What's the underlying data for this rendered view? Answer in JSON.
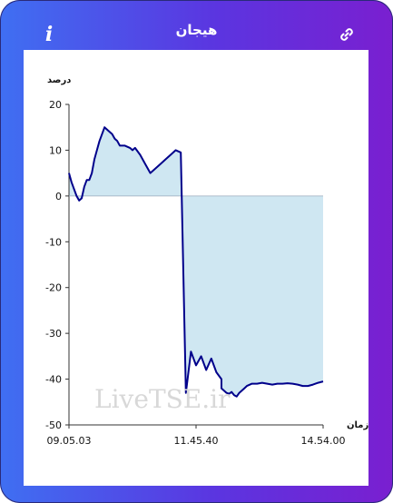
{
  "header": {
    "title": "هیجان",
    "info_label": "i"
  },
  "watermark": "LiveTSE.ir",
  "colors": {
    "line": "#00008b",
    "fill": "#cfe7f2",
    "axis": "#333333"
  },
  "icons": {
    "info": "info-icon",
    "link": "link-icon"
  },
  "chart_data": {
    "type": "area",
    "ylabel": "درصد",
    "xlabel": "زمان",
    "ylim": [
      -50,
      20
    ],
    "yticks": [
      20,
      10,
      0,
      -10,
      -20,
      -30,
      -40,
      -50
    ],
    "xticks": [
      "09.05.03",
      "11.45.40",
      "14.54.00"
    ],
    "grid": false,
    "series": [
      {
        "x": [
          0,
          0.01,
          0.03,
          0.04,
          0.05,
          0.06,
          0.07,
          0.08,
          0.09,
          0.1,
          0.11,
          0.12,
          0.14,
          0.16,
          0.17,
          0.18,
          0.19,
          0.2,
          0.22,
          0.24,
          0.25,
          0.26,
          0.28,
          0.3,
          0.32,
          0.33,
          0.34,
          0.36,
          0.38,
          0.4,
          0.42,
          0.44,
          0.46,
          0.48,
          0.5,
          0.52,
          0.54,
          0.56,
          0.58,
          0.6,
          0.6,
          0.61,
          0.62,
          0.63,
          0.64,
          0.65,
          0.66,
          0.67,
          0.68,
          0.69,
          0.7,
          0.72,
          0.74,
          0.76,
          0.78,
          0.8,
          0.82,
          0.84,
          0.86,
          0.88,
          0.9,
          0.92,
          0.94,
          0.96,
          0.98,
          1.0
        ],
        "y": [
          5,
          3,
          0,
          -1,
          -0.5,
          2,
          3.5,
          3.5,
          5,
          8,
          10,
          12,
          15,
          14,
          13.5,
          12.5,
          12,
          11,
          11,
          10.5,
          10,
          10.5,
          9,
          7,
          5,
          5.5,
          6,
          7,
          8,
          9,
          10,
          9.5,
          -43,
          -34,
          -37,
          -35,
          -38,
          -35.5,
          -38.5,
          -40,
          -42,
          -42.5,
          -43,
          -43.2,
          -42.8,
          -43.5,
          -43.8,
          -43,
          -42.5,
          -42,
          -41.5,
          -41,
          -41,
          -40.8,
          -41,
          -41.2,
          -41,
          -41,
          -40.9,
          -41,
          -41.2,
          -41.5,
          -41.5,
          -41.2,
          -40.8,
          -40.5
        ]
      }
    ]
  }
}
